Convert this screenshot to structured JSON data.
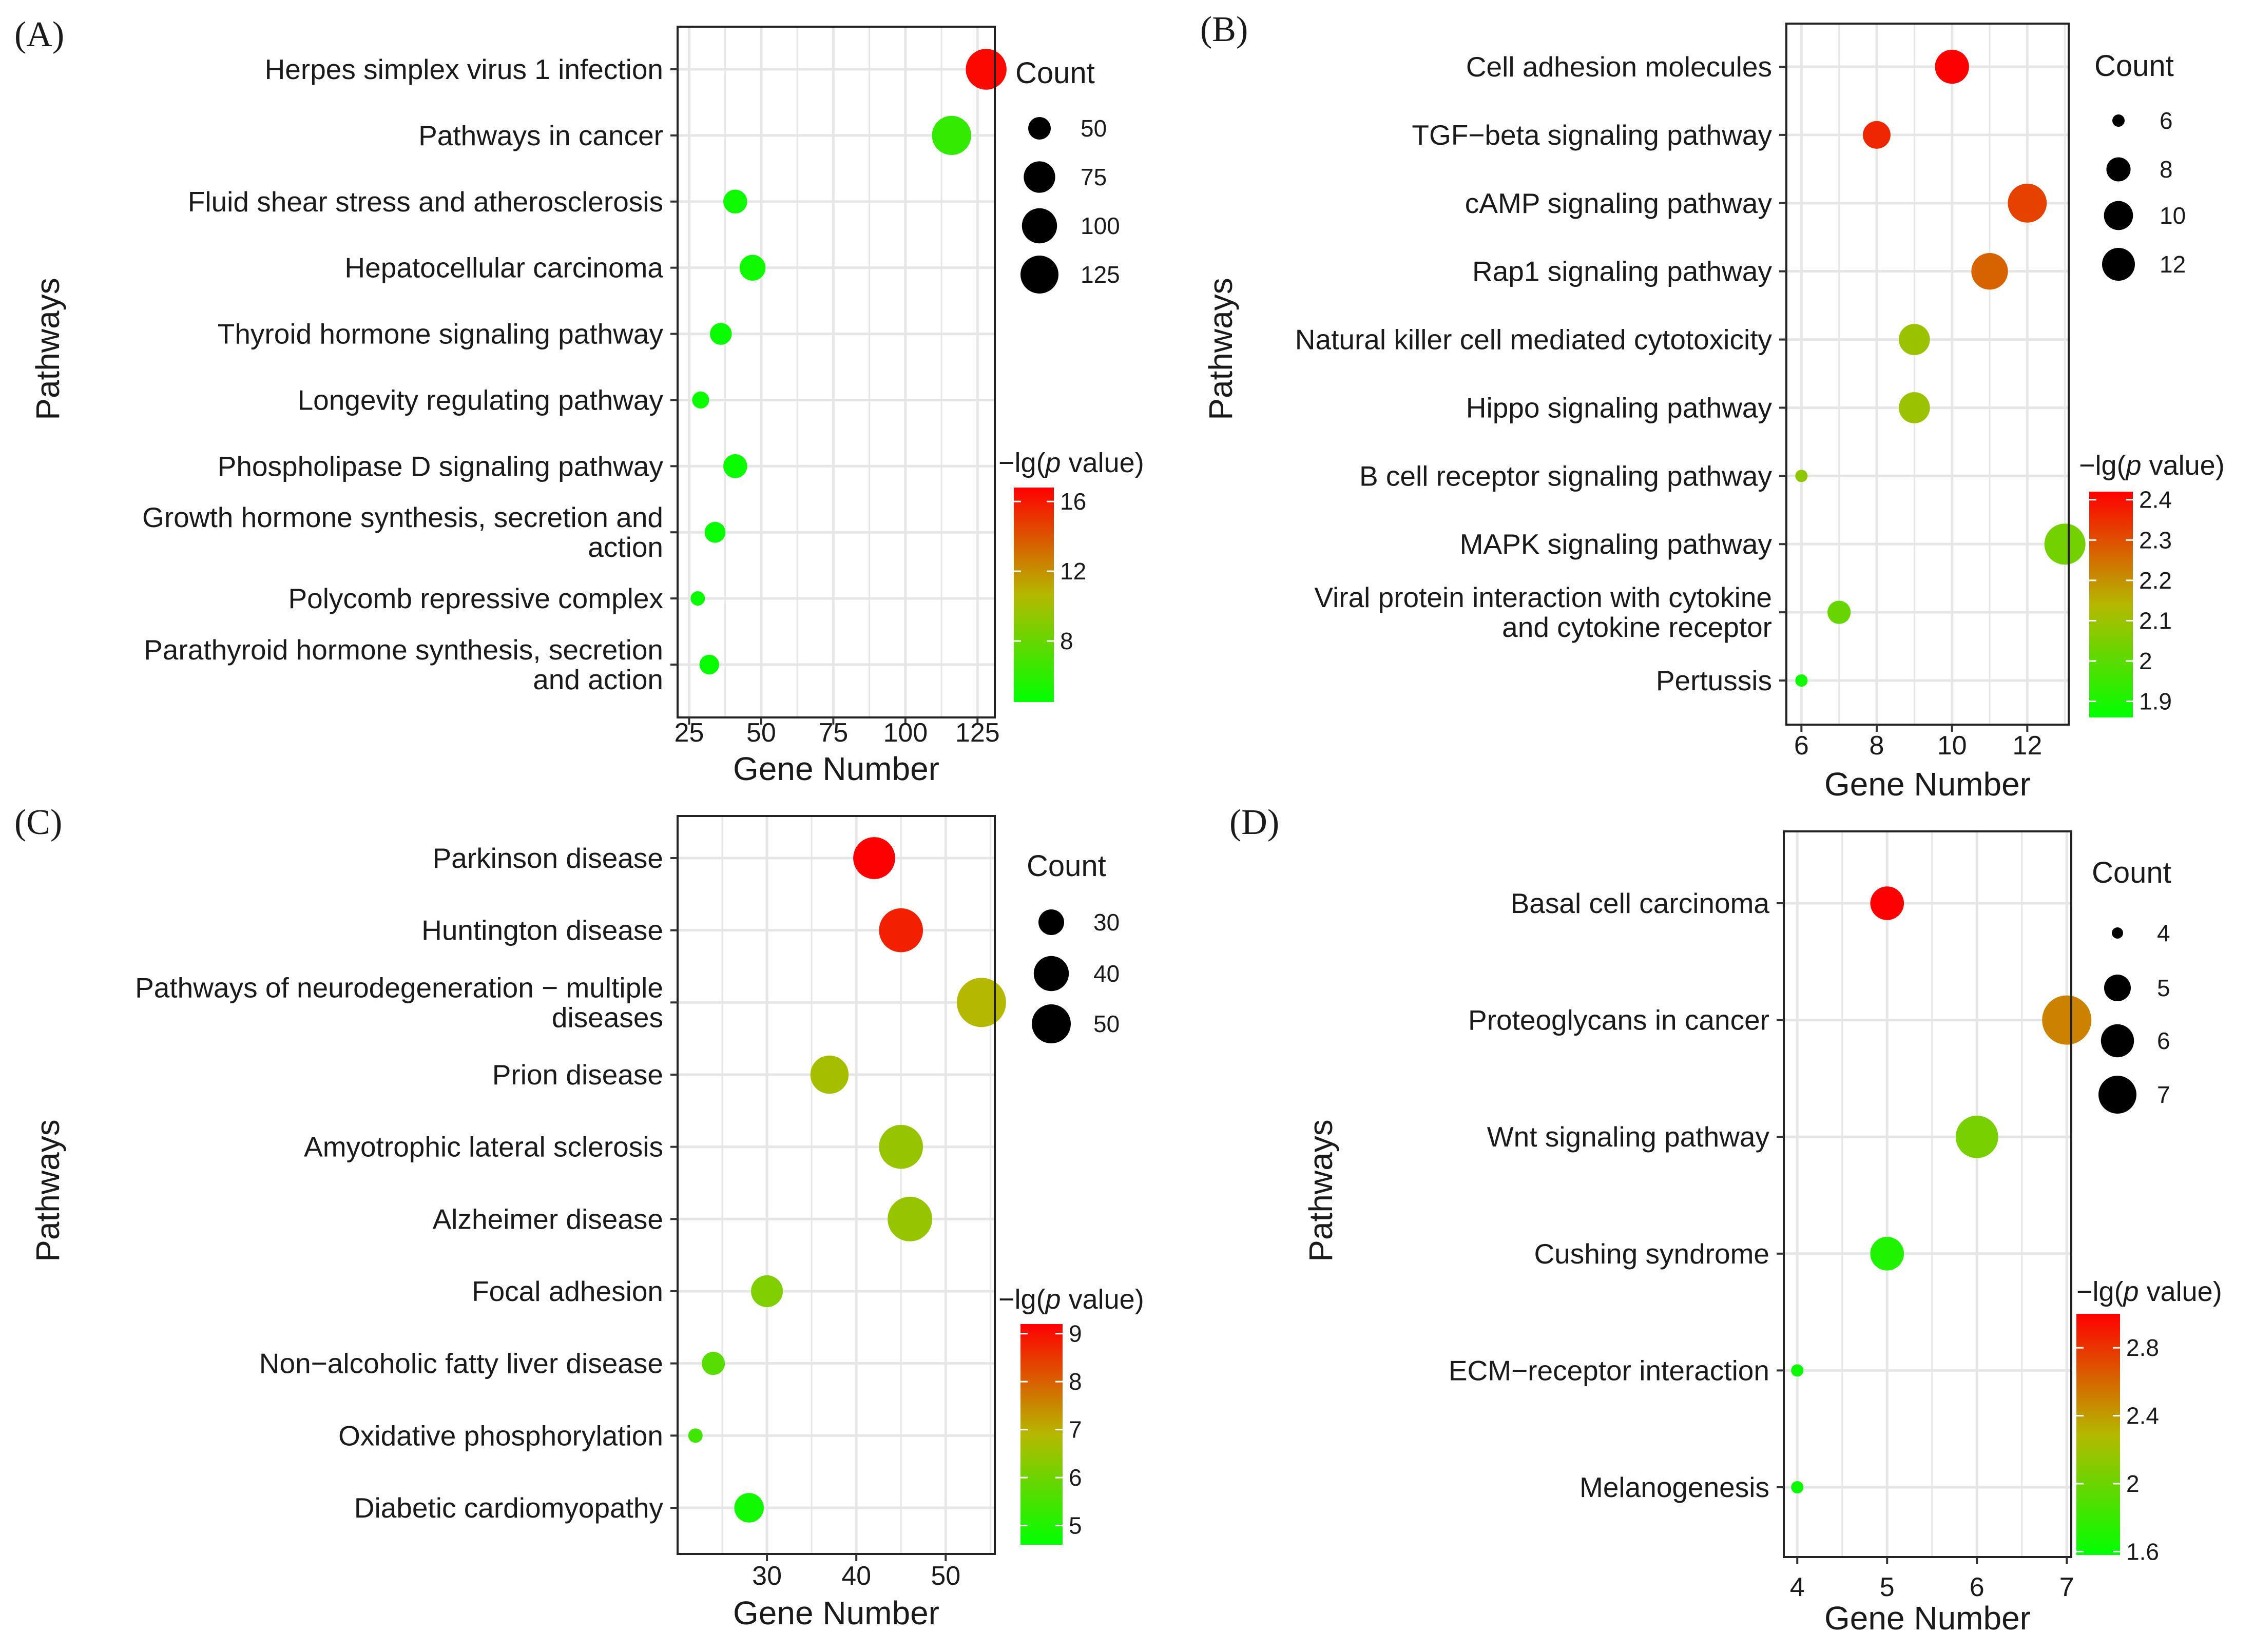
{
  "colors": {
    "low": "#00ff00",
    "mid": "#b5b800",
    "high": "#ff0000",
    "grid": "#e6e6e6",
    "panel_border": "#222222",
    "background": "#ffffff"
  },
  "chart_data": [
    {
      "panel": "(A)",
      "type": "scatter",
      "xlabel": "Gene Number",
      "ylabel": "Pathways",
      "xlim": [
        21,
        131
      ],
      "x_ticks": [
        25,
        50,
        75,
        100,
        125
      ],
      "size_legend": {
        "title": "Count",
        "values": [
          50,
          75,
          100,
          125
        ]
      },
      "color_legend": {
        "title_prefix": "−lg(",
        "title_italic": "p",
        "title_suffix": " value)",
        "range": [
          4.5,
          16.8
        ],
        "ticks": [
          8,
          12,
          16
        ]
      },
      "size_domain": [
        28,
        130
      ],
      "points": [
        {
          "pathway": [
            "Herpes simplex virus 1 infection"
          ],
          "x": 128,
          "count": 128,
          "neglogp": 16.5
        },
        {
          "pathway": [
            "Pathways in cancer"
          ],
          "x": 116,
          "count": 116,
          "neglogp": 6.2
        },
        {
          "pathway": [
            "Fluid shear stress and atherosclerosis"
          ],
          "x": 41,
          "count": 41,
          "neglogp": 5.0
        },
        {
          "pathway": [
            "Hepatocellular carcinoma"
          ],
          "x": 47,
          "count": 47,
          "neglogp": 5.0
        },
        {
          "pathway": [
            "Thyroid hormone signaling pathway"
          ],
          "x": 36,
          "count": 36,
          "neglogp": 4.8
        },
        {
          "pathway": [
            "Longevity regulating pathway"
          ],
          "x": 29,
          "count": 29,
          "neglogp": 4.8
        },
        {
          "pathway": [
            "Phospholipase D signaling pathway"
          ],
          "x": 41,
          "count": 41,
          "neglogp": 4.8
        },
        {
          "pathway": [
            "Growth hormone synthesis, secretion and",
            "action"
          ],
          "x": 34,
          "count": 34,
          "neglogp": 4.7
        },
        {
          "pathway": [
            "Polycomb repressive complex"
          ],
          "x": 28,
          "count": 28,
          "neglogp": 4.7
        },
        {
          "pathway": [
            "Parathyroid hormone synthesis, secretion",
            "and action"
          ],
          "x": 32,
          "count": 32,
          "neglogp": 4.7
        }
      ]
    },
    {
      "panel": "(B)",
      "type": "scatter",
      "xlabel": "Gene Number",
      "ylabel": "Pathways",
      "xlim": [
        5.6,
        13.1
      ],
      "x_ticks": [
        6,
        8,
        10,
        12
      ],
      "size_legend": {
        "title": "Count",
        "values": [
          6,
          8,
          10,
          12
        ]
      },
      "color_legend": {
        "title_prefix": "−lg(",
        "title_italic": "p",
        "title_suffix": " value)",
        "range": [
          1.86,
          2.42
        ],
        "ticks": [
          1.9,
          2.0,
          2.1,
          2.2,
          2.3,
          2.4
        ]
      },
      "size_domain": [
        6,
        13
      ],
      "points": [
        {
          "pathway": [
            "Cell adhesion molecules"
          ],
          "x": 10,
          "count": 10,
          "neglogp": 2.42
        },
        {
          "pathway": [
            "TGF−beta signaling pathway"
          ],
          "x": 8,
          "count": 8,
          "neglogp": 2.36
        },
        {
          "pathway": [
            "cAMP signaling pathway"
          ],
          "x": 12,
          "count": 12,
          "neglogp": 2.32
        },
        {
          "pathway": [
            "Rap1 signaling pathway"
          ],
          "x": 11,
          "count": 11,
          "neglogp": 2.27
        },
        {
          "pathway": [
            "Natural killer cell mediated cytotoxicity"
          ],
          "x": 9,
          "count": 9,
          "neglogp": 2.1
        },
        {
          "pathway": [
            "Hippo signaling pathway"
          ],
          "x": 9,
          "count": 9,
          "neglogp": 2.1
        },
        {
          "pathway": [
            "B cell receptor signaling pathway"
          ],
          "x": 6,
          "count": 6,
          "neglogp": 2.08
        },
        {
          "pathway": [
            "MAPK signaling pathway"
          ],
          "x": 13,
          "count": 13,
          "neglogp": 2.04
        },
        {
          "pathway": [
            "Viral protein interaction with cytokine",
            "and cytokine receptor"
          ],
          "x": 7,
          "count": 7,
          "neglogp": 2.02
        },
        {
          "pathway": [
            "Pertussis"
          ],
          "x": 6,
          "count": 6,
          "neglogp": 1.88
        }
      ]
    },
    {
      "panel": "(C)",
      "type": "scatter",
      "xlabel": "Gene Number",
      "ylabel": "Pathways",
      "xlim": [
        20,
        55.5
      ],
      "x_ticks": [
        30,
        40,
        50
      ],
      "size_legend": {
        "title": "Count",
        "values": [
          30,
          40,
          50
        ]
      },
      "color_legend": {
        "title_prefix": "−lg(",
        "title_italic": "p",
        "title_suffix": " value)",
        "range": [
          4.6,
          9.2
        ],
        "ticks": [
          5,
          6,
          7,
          8,
          9
        ]
      },
      "size_domain": [
        22,
        54
      ],
      "points": [
        {
          "pathway": [
            "Parkinson disease"
          ],
          "x": 42,
          "count": 42,
          "neglogp": 9.2
        },
        {
          "pathway": [
            "Huntington disease"
          ],
          "x": 45,
          "count": 45,
          "neglogp": 8.8
        },
        {
          "pathway": [
            "Pathways of neurodegeneration − multiple",
            "diseases"
          ],
          "x": 54,
          "count": 54,
          "neglogp": 6.9
        },
        {
          "pathway": [
            "Prion disease"
          ],
          "x": 37,
          "count": 37,
          "neglogp": 6.7
        },
        {
          "pathway": [
            "Amyotrophic lateral sclerosis"
          ],
          "x": 45,
          "count": 45,
          "neglogp": 6.5
        },
        {
          "pathway": [
            "Alzheimer disease"
          ],
          "x": 46,
          "count": 46,
          "neglogp": 6.5
        },
        {
          "pathway": [
            "Focal adhesion"
          ],
          "x": 30,
          "count": 30,
          "neglogp": 6.2
        },
        {
          "pathway": [
            "Non−alcoholic fatty liver disease"
          ],
          "x": 24,
          "count": 24,
          "neglogp": 5.7
        },
        {
          "pathway": [
            "Oxidative phosphorylation"
          ],
          "x": 22,
          "count": 22,
          "neglogp": 5.4
        },
        {
          "pathway": [
            "Diabetic cardiomyopathy"
          ],
          "x": 28,
          "count": 28,
          "neglogp": 4.8
        }
      ]
    },
    {
      "panel": "(D)",
      "type": "scatter",
      "xlabel": "Gene Number",
      "ylabel": "Pathways",
      "xlim": [
        3.85,
        7.05
      ],
      "x_ticks": [
        4,
        5,
        6,
        7
      ],
      "size_legend": {
        "title": "Count",
        "values": [
          4,
          5,
          6,
          7
        ]
      },
      "color_legend": {
        "title_prefix": "−lg(",
        "title_italic": "p",
        "title_suffix": " value)",
        "range": [
          1.58,
          3.0
        ],
        "ticks": [
          1.6,
          2.0,
          2.4,
          2.8
        ]
      },
      "size_domain": [
        4,
        7
      ],
      "points": [
        {
          "pathway": [
            "Basal cell carcinoma"
          ],
          "x": 5,
          "count": 5,
          "neglogp": 3.0
        },
        {
          "pathway": [
            "Proteoglycans in cancer"
          ],
          "x": 7,
          "count": 7,
          "neglogp": 2.5
        },
        {
          "pathway": [
            "Wnt signaling pathway"
          ],
          "x": 6,
          "count": 6,
          "neglogp": 2.05
        },
        {
          "pathway": [
            "Cushing syndrome"
          ],
          "x": 5,
          "count": 5,
          "neglogp": 1.7
        },
        {
          "pathway": [
            "ECM−receptor interaction"
          ],
          "x": 4,
          "count": 4,
          "neglogp": 1.62
        },
        {
          "pathway": [
            "Melanogenesis"
          ],
          "x": 4,
          "count": 4,
          "neglogp": 1.62
        }
      ]
    }
  ]
}
